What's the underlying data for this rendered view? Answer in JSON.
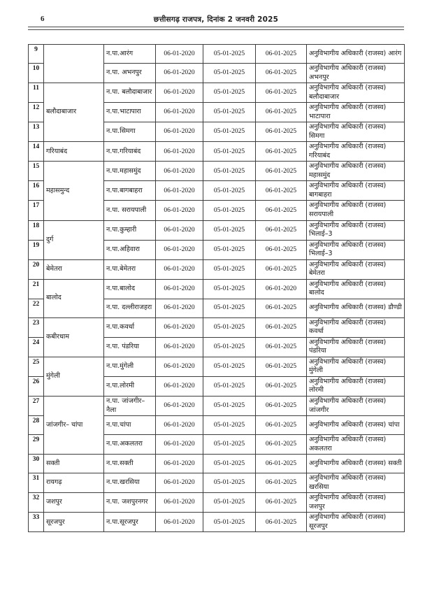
{
  "page": {
    "number": "6",
    "header_title": "छत्तीसगढ़ राजपत्र, दिनांक 2 जनवरी 2025"
  },
  "table": {
    "rows": [
      {
        "sr": "9",
        "district": "",
        "district_span": 2,
        "municipality": "न.पा.आरंग",
        "d1": "06-01-2020",
        "d2": "05-01-2025",
        "d3": "06-01-2025",
        "officer": "अनुविभागीय अधिकारी (राजस्व) आरंग"
      },
      {
        "sr": "10",
        "municipality": "न.पा. अभनपुर",
        "d1": "06-01-2020",
        "d2": "05-01-2025",
        "d3": "06-01-2025",
        "officer": "अनुविभागीय अधिकारी (राजस्व) अभनपुर"
      },
      {
        "sr": "11",
        "district": "बलौदाबाजार",
        "district_span": 3,
        "municipality": "न.पा. बलौदाबाजार",
        "d1": "06-01-2020",
        "d2": "05-01-2025",
        "d3": "06-01-2025",
        "officer": "अनुविभागीय अधिकारी (राजस्व) बलौदाबाजार"
      },
      {
        "sr": "12",
        "municipality": "न.पा.भाटापारा",
        "d1": "06-01-2020",
        "d2": "05-01-2025",
        "d3": "06-01-2025",
        "officer": "अनुविभागीय अधिकारी (राजस्व) भाटापारा"
      },
      {
        "sr": "13",
        "municipality": "न.पा.सिमगा",
        "d1": "06-01-2020",
        "d2": "05-01-2025",
        "d3": "06-01-2025",
        "officer": "अनुविभागीय अधिकारी (राजस्व) सिमगा"
      },
      {
        "sr": "14",
        "district": "गरियाबंद",
        "district_span": 1,
        "municipality": "न.पा.गरियाबंद",
        "d1": "06-01-2020",
        "d2": "05-01-2025",
        "d3": "06-01-2025",
        "officer": "अनुविभागीय अधिकारी (राजस्व) गरियाबंद"
      },
      {
        "sr": "15",
        "district": "महासमुन्द",
        "district_span": 3,
        "municipality": "न.पा.महासमुंद",
        "d1": "06-01-2020",
        "d2": "05-01-2025",
        "d3": "06-01-2025",
        "officer": "अनुविभागीय अधिकारी (राजस्व) महासमुंद"
      },
      {
        "sr": "16",
        "municipality": "न.पा.बागबाहरा",
        "d1": "06-01-2020",
        "d2": "05-01-2025",
        "d3": "06-01-2025",
        "officer": "अनुविभागीय अधिकारी (राजस्व) बागबाहरा"
      },
      {
        "sr": "17",
        "municipality": "न.पा. सरायपाली",
        "d1": "06-01-2020",
        "d2": "05-01-2025",
        "d3": "06-01-2025",
        "officer": "अनुविभागीय अधिकारी (राजस्व) सरायपाली"
      },
      {
        "sr": "18",
        "district": "दुर्ग",
        "district_span": 2,
        "municipality": "न.पा.कुम्हारी",
        "d1": "06-01-2020",
        "d2": "05-01-2025",
        "d3": "06-01-2025",
        "officer": "अनुविभागीय अधिकारी (राजस्व) भिलाई–3"
      },
      {
        "sr": "19",
        "municipality": "न.पा.अहिवारा",
        "d1": "06-01-2020",
        "d2": "05-01-2025",
        "d3": "06-01-2025",
        "officer": "अनुविभागीय अधिकारी (राजस्व) भिलाई–3"
      },
      {
        "sr": "20",
        "district": "बेमेतरा",
        "district_span": 1,
        "municipality": "न.पा.बेमेतरा",
        "d1": "06-01-2020",
        "d2": "05-01-2025",
        "d3": "06-01-2025",
        "officer": "अनुविभागीय अधिकारी (राजस्व) बेमेतरा"
      },
      {
        "sr": "21",
        "district": "बालोद",
        "district_span": 2,
        "municipality": "न.पा.बालोद",
        "d1": "06-01-2020",
        "d2": "05-01-2025",
        "d3": "06-01-2020",
        "officer": "अनुविभागीय अधिकारी (राजस्व) बालोद"
      },
      {
        "sr": "22",
        "municipality": "न.पा. दल्लीराजहरा",
        "d1": "06-01-2020",
        "d2": "05-01-2025",
        "d3": "06-01-2025",
        "officer": "अनुविभागीय अधिकारी (राजस्व) डौण्डी"
      },
      {
        "sr": "23",
        "district": "कबीरधाम",
        "district_span": 2,
        "municipality": "न.पा.कवर्धा",
        "d1": "06-01-2020",
        "d2": "05-01-2025",
        "d3": "06-01-2025",
        "officer": "अनुविभागीय अधिकारी (राजस्व) कवर्धा"
      },
      {
        "sr": "24",
        "municipality": "न.पा. पंडरिया",
        "d1": "06-01-2020",
        "d2": "05-01-2025",
        "d3": "06-01-2025",
        "officer": "अनुविभागीय अधिकारी (राजस्व) पंडरिया"
      },
      {
        "sr": "25",
        "district": "मुंगेली",
        "district_span": 2,
        "municipality": "न.पा.मुंगेली",
        "d1": "06-01-2020",
        "d2": "05-01-2025",
        "d3": "06-01-2025",
        "officer": "अनुविभागीय अधिकारी (राजस्व) मुंगेली"
      },
      {
        "sr": "26",
        "municipality": "न.पा.लोरमी",
        "d1": "06-01-2020",
        "d2": "05-01-2025",
        "d3": "06-01-2025",
        "officer": "अनुविभागीय अधिकारी (राजस्व) लोरमी"
      },
      {
        "sr": "27",
        "district": "जांजगीर– चांपा",
        "district_span": 3,
        "municipality": "न.पा. जांजगीर–नैला",
        "d1": "06-01-2020",
        "d2": "05-01-2025",
        "d3": "06-01-2025",
        "officer": "अनुविभागीय अधिकारी (राजस्व) जांजगीर"
      },
      {
        "sr": "28",
        "municipality": "न.पा.चांपा",
        "d1": "06-01-2020",
        "d2": "05-01-2025",
        "d3": "06-01-2025",
        "officer": "अनुविभागीय अधिकारी (राजस्व) चांपा"
      },
      {
        "sr": "29",
        "municipality": "न.पा.अकलतरा",
        "d1": "06-01-2020",
        "d2": "05-01-2025",
        "d3": "06-01-2025",
        "officer": "अनुविभागीय अधिकारी (राजस्व) अकलतरा"
      },
      {
        "sr": "30",
        "district": "सक्ती",
        "district_span": 1,
        "municipality": "न.पा.सक्ती",
        "d1": "06-01-2020",
        "d2": "05-01-2025",
        "d3": "06-01-2025",
        "officer": "अनुविभागीय अधिकारी (राजस्व) सक्ती"
      },
      {
        "sr": "31",
        "district": "रायगढ़",
        "district_span": 1,
        "municipality": "न.पा.खरसिया",
        "d1": "06-01-2020",
        "d2": "05-01-2025",
        "d3": "06-01-2025",
        "officer": "अनुविभागीय अधिकारी (राजस्व) खरसिया"
      },
      {
        "sr": "32",
        "district": "जशपुर",
        "district_span": 1,
        "municipality": "न.पा. जशपुरनगर",
        "d1": "06-01-2020",
        "d2": "05-01-2025",
        "d3": "06-01-2025",
        "officer": "अनुविभागीय अधिकारी (राजस्व) जशपुर"
      },
      {
        "sr": "33",
        "district": "सूरजपुर",
        "district_span": 1,
        "municipality": "न.पा.सूरजपुर",
        "d1": "06-01-2020",
        "d2": "05-01-2025",
        "d3": "06-01-2025",
        "officer": "अनुविभागीय अधिकारी (राजस्व) सूरजपुर"
      }
    ]
  }
}
